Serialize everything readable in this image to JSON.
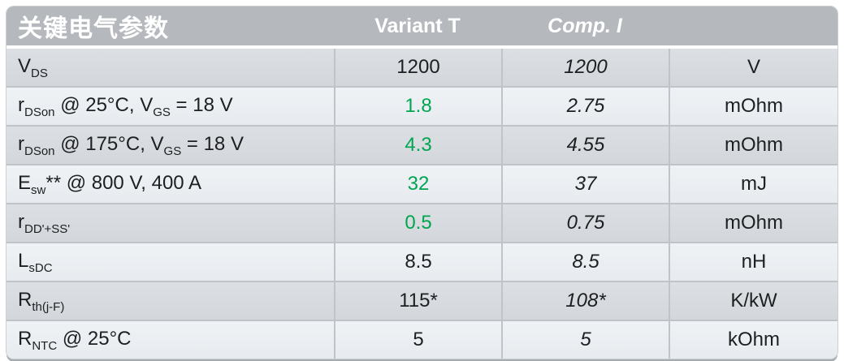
{
  "colors": {
    "highlight_green": "#00A551",
    "header_bg": "#B5B9BD",
    "body_text": "#1D1F21"
  },
  "header": {
    "title": "关键电气参数",
    "variant_label": "Variant T",
    "comp_label": "Comp. I",
    "unit_label": ""
  },
  "param_parts": [
    [
      {
        "t": "V"
      },
      {
        "s": "DS"
      }
    ],
    [
      {
        "t": "r"
      },
      {
        "s": "DSon"
      },
      {
        "t": " @ 25°C, V"
      },
      {
        "s": "GS"
      },
      {
        "t": " = 18 V"
      }
    ],
    [
      {
        "t": "r"
      },
      {
        "s": "DSon"
      },
      {
        "t": " @ 175°C, V"
      },
      {
        "s": "GS"
      },
      {
        "t": " = 18 V"
      }
    ],
    [
      {
        "t": "E"
      },
      {
        "s": "sw"
      },
      {
        "t": "** @ 800 V, 400 A"
      }
    ],
    [
      {
        "t": "r"
      },
      {
        "s": "DD'+SS'"
      }
    ],
    [
      {
        "t": "L"
      },
      {
        "s": "sDC"
      }
    ],
    [
      {
        "t": "R"
      },
      {
        "s": "th(j-F)"
      }
    ],
    [
      {
        "t": "R"
      },
      {
        "s": "NTC"
      },
      {
        "t": " @ 25°C"
      }
    ]
  ],
  "chart_data": {
    "type": "table",
    "title": "关键电气参数",
    "columns": [
      "关键电气参数",
      "Variant T",
      "Comp. I",
      ""
    ],
    "rows": [
      {
        "parameter": "V_DS",
        "variant_t": "1200",
        "comp_i": "1200",
        "unit": "V",
        "variant_green": false
      },
      {
        "parameter": "r_DSon @ 25°C, V_GS = 18 V",
        "variant_t": "1.8",
        "comp_i": "2.75",
        "unit": "mOhm",
        "variant_green": true
      },
      {
        "parameter": "r_DSon @ 175°C, V_GS = 18 V",
        "variant_t": "4.3",
        "comp_i": "4.55",
        "unit": "mOhm",
        "variant_green": true
      },
      {
        "parameter": "E_sw** @ 800 V, 400 A",
        "variant_t": "32",
        "comp_i": "37",
        "unit": "mJ",
        "variant_green": true
      },
      {
        "parameter": "r_DD'+SS'",
        "variant_t": "0.5",
        "comp_i": "0.75",
        "unit": "mOhm",
        "variant_green": true
      },
      {
        "parameter": "L_sDC",
        "variant_t": "8.5",
        "comp_i": "8.5",
        "unit": "nH",
        "variant_green": false
      },
      {
        "parameter": "R_th(j-F)",
        "variant_t": "115*",
        "comp_i": "108*",
        "unit": "K/kW",
        "variant_green": false
      },
      {
        "parameter": "R_NTC @ 25°C",
        "variant_t": "5",
        "comp_i": "5",
        "unit": "kOhm",
        "variant_green": false
      }
    ]
  }
}
